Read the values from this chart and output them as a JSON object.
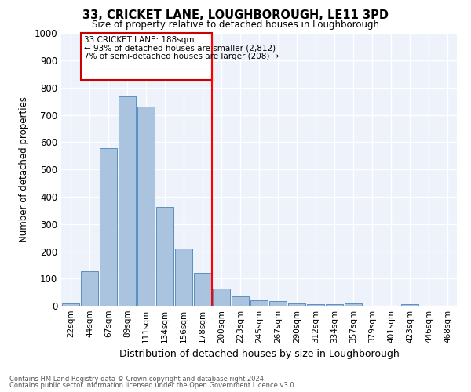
{
  "title": "33, CRICKET LANE, LOUGHBOROUGH, LE11 3PD",
  "subtitle": "Size of property relative to detached houses in Loughborough",
  "xlabel": "Distribution of detached houses by size in Loughborough",
  "ylabel": "Number of detached properties",
  "categories": [
    "22sqm",
    "44sqm",
    "67sqm",
    "89sqm",
    "111sqm",
    "134sqm",
    "156sqm",
    "178sqm",
    "200sqm",
    "223sqm",
    "245sqm",
    "267sqm",
    "290sqm",
    "312sqm",
    "334sqm",
    "357sqm",
    "379sqm",
    "401sqm",
    "423sqm",
    "446sqm",
    "468sqm"
  ],
  "values": [
    10,
    127,
    578,
    768,
    730,
    362,
    210,
    122,
    62,
    35,
    20,
    18,
    10,
    7,
    5,
    8,
    0,
    0,
    5,
    0,
    0
  ],
  "bar_color": "#aac4e0",
  "bar_edge_color": "#5a8fc0",
  "vline_label": "33 CRICKET LANE: 188sqm",
  "annotation_line1": "← 93% of detached houses are smaller (2,812)",
  "annotation_line2": "7% of semi-detached houses are larger (208) →",
  "box_color": "#cc0000",
  "ylim": [
    0,
    1000
  ],
  "yticks": [
    0,
    100,
    200,
    300,
    400,
    500,
    600,
    700,
    800,
    900,
    1000
  ],
  "background_color": "#eef2fb",
  "grid_color": "#ffffff",
  "footer1": "Contains HM Land Registry data © Crown copyright and database right 2024.",
  "footer2": "Contains public sector information licensed under the Open Government Licence v3.0."
}
